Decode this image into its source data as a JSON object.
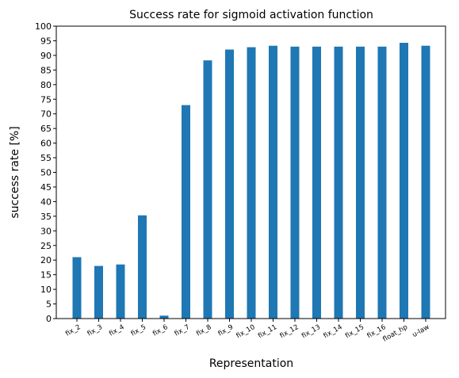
{
  "chart_data": {
    "type": "bar",
    "title": "Success rate for sigmoid activation function",
    "xlabel": "Representation",
    "ylabel": "success rate [%]",
    "ylim": [
      0,
      100
    ],
    "yticks": [
      0,
      5,
      10,
      15,
      20,
      25,
      30,
      35,
      40,
      45,
      50,
      55,
      60,
      65,
      70,
      75,
      80,
      85,
      90,
      95,
      100
    ],
    "grid": false,
    "bar_color": "#1f77b4",
    "categories": [
      "fix_2",
      "fix_3",
      "fix_4",
      "fix_5",
      "fix_6",
      "fix_7",
      "fix_8",
      "fix_9",
      "fix_10",
      "fix_11",
      "fix_12",
      "fix_13",
      "fix_14",
      "fix_15",
      "fix_16",
      "float_hp",
      "u-law"
    ],
    "values": [
      21.0,
      18.0,
      18.5,
      35.3,
      1.0,
      73.0,
      88.3,
      92.0,
      92.8,
      93.3,
      93.0,
      93.0,
      93.0,
      93.0,
      93.0,
      94.3,
      93.3
    ]
  }
}
